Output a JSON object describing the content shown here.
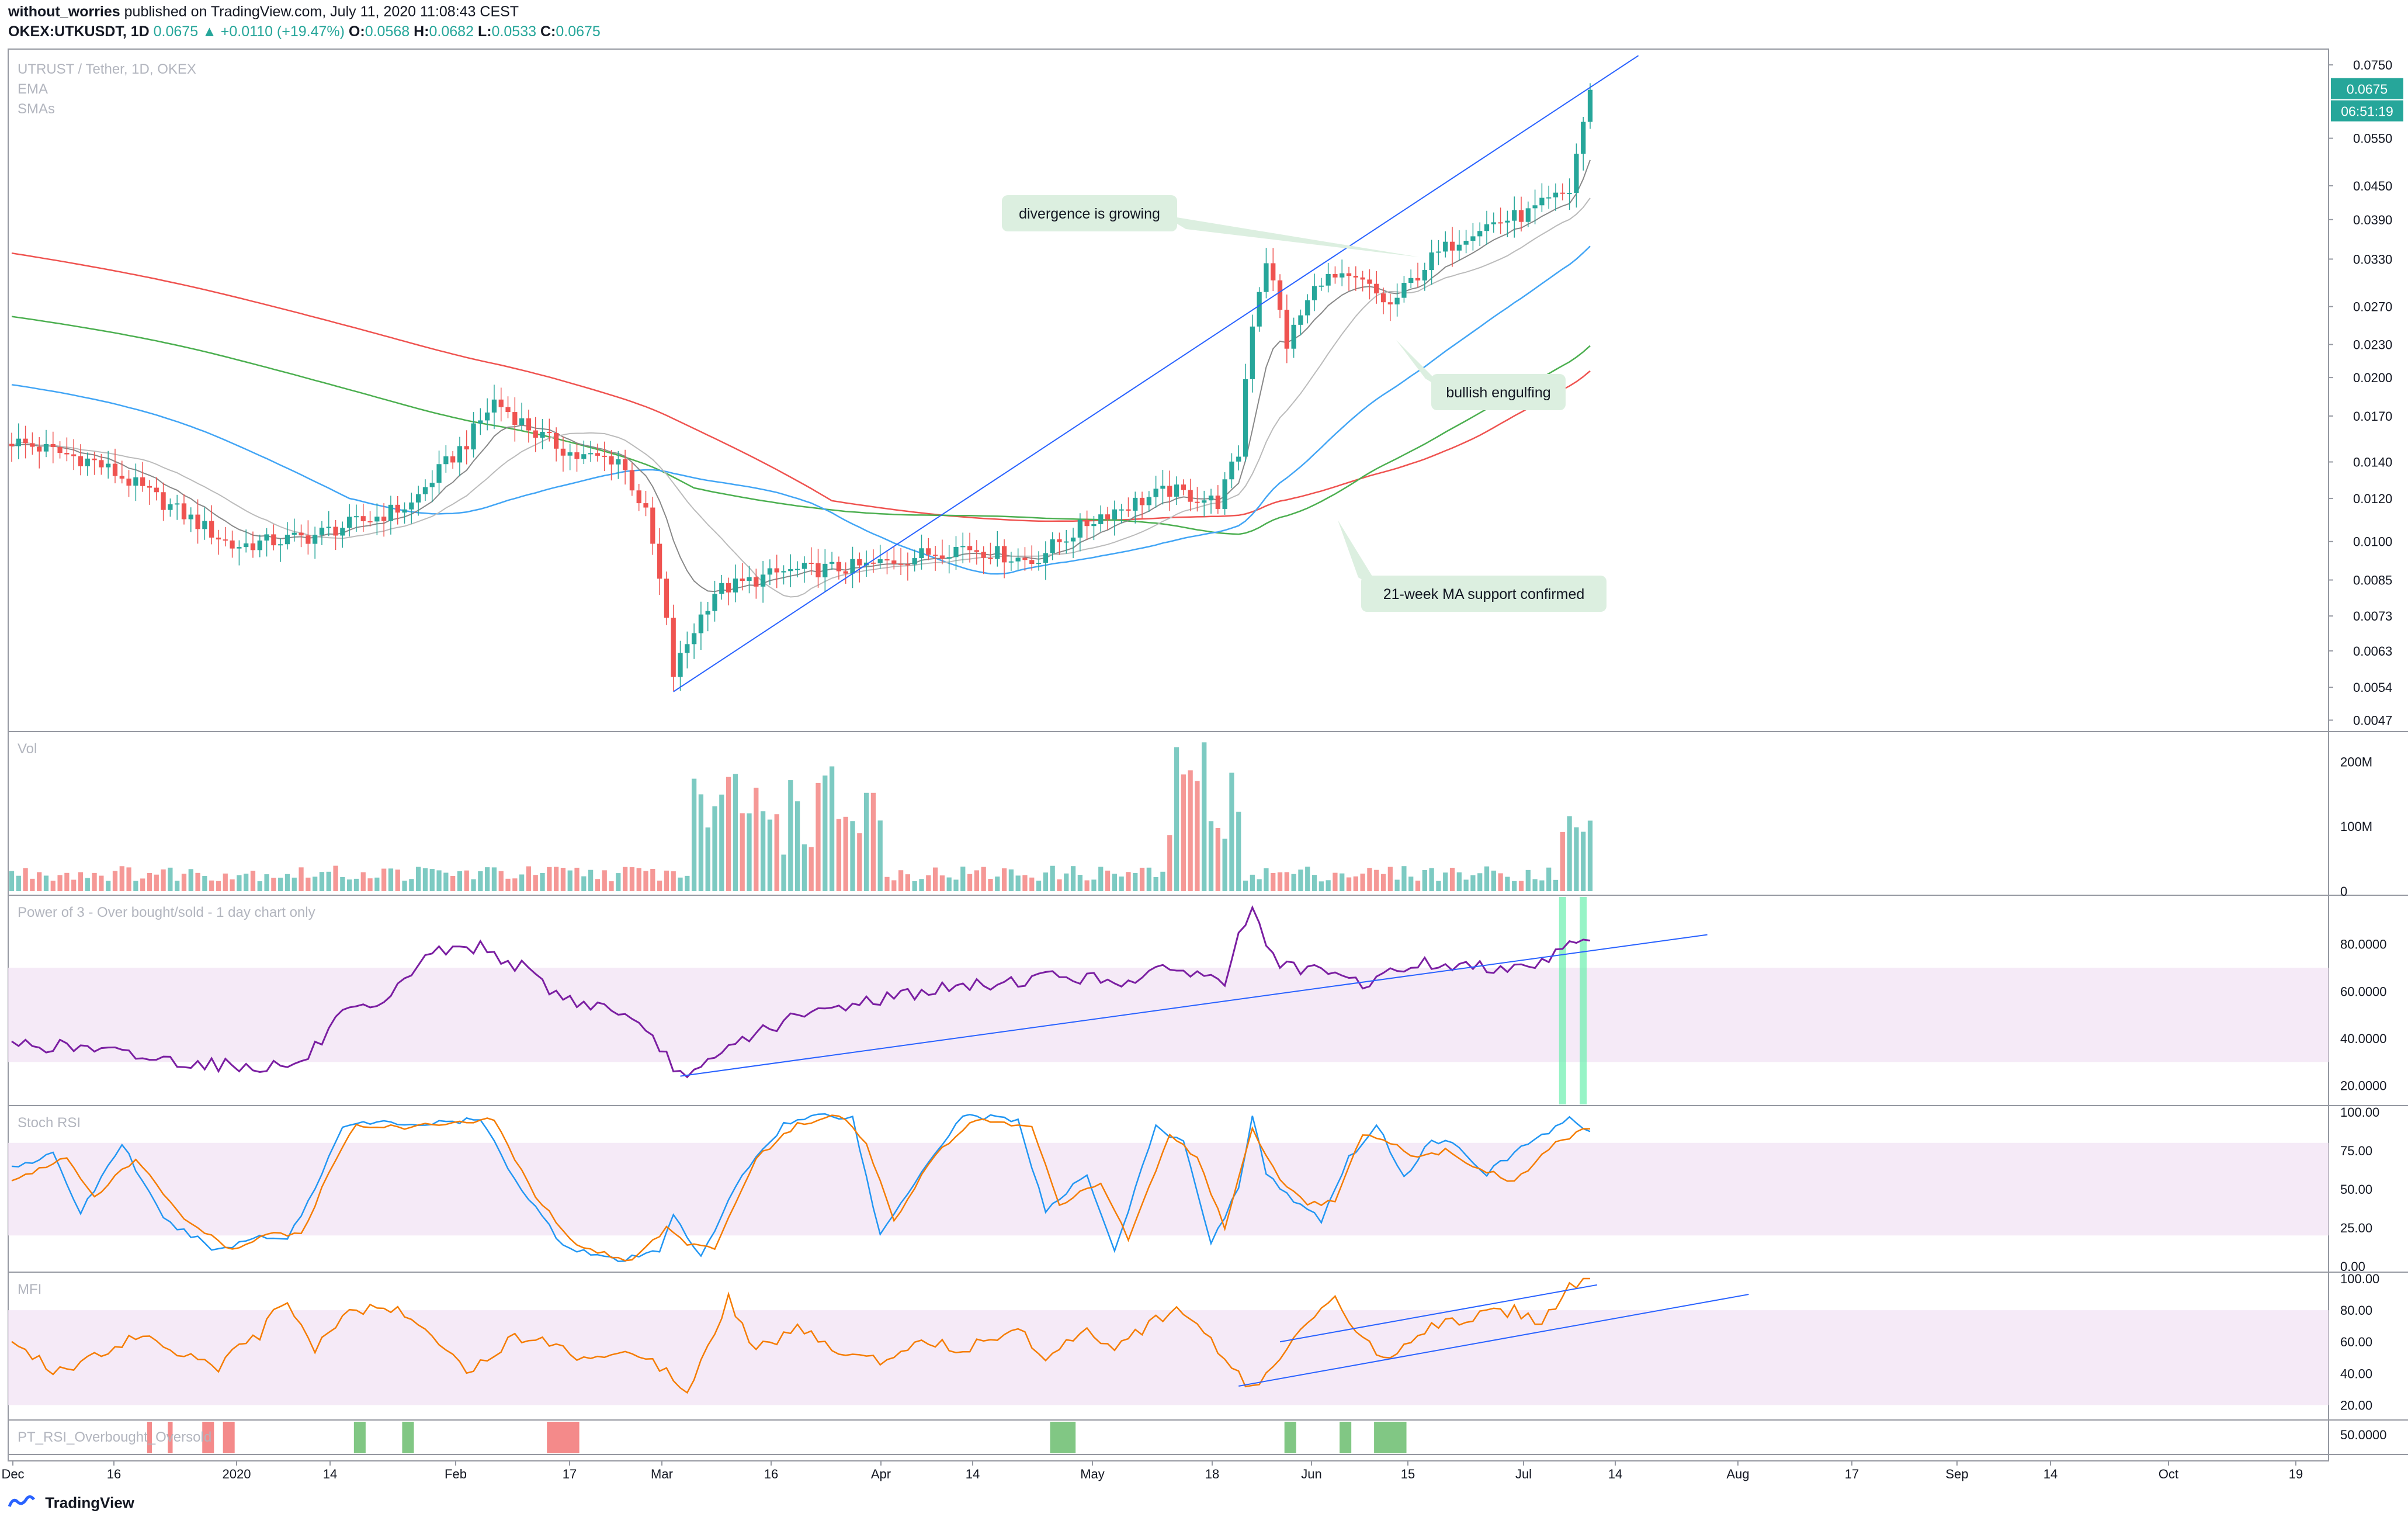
{
  "header": {
    "author": "without_worries",
    "published": "published on TradingView.com, July 11, 2020 11:08:43 CEST",
    "symbol": "OKEX:UTKUSDT, 1D",
    "last": "0.0675",
    "change": "+0.0110 (+19.47%)",
    "o_label": "O:",
    "o": "0.0568",
    "h_label": "H:",
    "h": "0.0682",
    "l_label": "L:",
    "l": "0.0533",
    "c_label": "C:",
    "c": "0.0675"
  },
  "footer": {
    "brand": "TradingView"
  },
  "colors": {
    "up": "#26a69a",
    "down": "#ef5350",
    "trendline": "#2962ff",
    "ema": "#a0a0a0",
    "sma_blue": "#42a5f5",
    "sma_green": "#4caf50",
    "sma_red": "#ef5350",
    "power3": "#7b1fa2",
    "stoch_k": "#2196f3",
    "stoch_d": "#f57c00",
    "mfi": "#f57c00",
    "band": "#f3e5f5",
    "annotation_bg": "#dcefe0"
  },
  "chart_data": {
    "type": "candlestick",
    "title": "UTRUST / Tether, 1D, OKEX",
    "legend": [
      "EMA",
      "SMAs"
    ],
    "y_scale": "log",
    "x_ticks": [
      "Dec",
      "16",
      "2020",
      "14",
      "Feb",
      "17",
      "Mar",
      "16",
      "Apr",
      "14",
      "May",
      "18",
      "Jun",
      "15",
      "Jul",
      "14",
      "Aug",
      "17",
      "Sep",
      "14",
      "Oct",
      "19"
    ],
    "price_ticks": [
      "0.0750",
      "0.0550",
      "0.0450",
      "0.0390",
      "0.0330",
      "0.0270",
      "0.0230",
      "0.0200",
      "0.0170",
      "0.0140",
      "0.0120",
      "0.0100",
      "0.0085",
      "0.0073",
      "0.0063",
      "0.0054",
      "0.0047"
    ],
    "last_price": "0.0675",
    "countdown": "06:51:19",
    "anchor_close": [
      [
        0,
        0.0153
      ],
      [
        12,
        0.014
      ],
      [
        22,
        0.0118
      ],
      [
        32,
        0.0098
      ],
      [
        43,
        0.0102
      ],
      [
        52,
        0.011
      ],
      [
        58,
        0.0117
      ],
      [
        66,
        0.0152
      ],
      [
        70,
        0.0181
      ],
      [
        76,
        0.0158
      ],
      [
        82,
        0.0143
      ],
      [
        88,
        0.0142
      ],
      [
        92,
        0.0112
      ],
      [
        96,
        0.0057
      ],
      [
        102,
        0.0081
      ],
      [
        112,
        0.0088
      ],
      [
        124,
        0.009
      ],
      [
        138,
        0.0098
      ],
      [
        148,
        0.0092
      ],
      [
        158,
        0.0112
      ],
      [
        168,
        0.0124
      ],
      [
        175,
        0.0118
      ],
      [
        178,
        0.0145
      ],
      [
        180,
        0.0253
      ],
      [
        182,
        0.033
      ],
      [
        185,
        0.023
      ],
      [
        190,
        0.0305
      ],
      [
        196,
        0.0298
      ],
      [
        200,
        0.027
      ],
      [
        206,
        0.033
      ],
      [
        212,
        0.0375
      ],
      [
        220,
        0.04
      ],
      [
        226,
        0.044
      ],
      [
        228,
        0.059
      ],
      [
        229,
        0.0675
      ]
    ],
    "annotations": [
      {
        "text": "divergence is growing"
      },
      {
        "text": "bullish engulfing"
      },
      {
        "text": "21-week MA support confirmed"
      }
    ],
    "panes": {
      "volume": {
        "title": "Vol",
        "ticks": [
          "200M",
          "100M",
          "0"
        ]
      },
      "power3": {
        "title": "Power of 3 - Over bought/sold - 1 day chart only",
        "ticks": [
          "80.0000",
          "60.0000",
          "40.0000",
          "20.0000"
        ],
        "band": [
          30,
          70
        ],
        "anchors": [
          [
            0,
            38
          ],
          [
            10,
            36
          ],
          [
            22,
            31
          ],
          [
            34,
            28
          ],
          [
            42,
            29
          ],
          [
            48,
            50
          ],
          [
            54,
            53
          ],
          [
            60,
            76
          ],
          [
            68,
            79
          ],
          [
            74,
            70
          ],
          [
            80,
            57
          ],
          [
            88,
            52
          ],
          [
            94,
            36
          ],
          [
            98,
            22
          ],
          [
            106,
            40
          ],
          [
            112,
            47
          ],
          [
            122,
            55
          ],
          [
            132,
            60
          ],
          [
            142,
            63
          ],
          [
            152,
            67
          ],
          [
            160,
            64
          ],
          [
            170,
            70
          ],
          [
            176,
            63
          ],
          [
            178,
            86
          ],
          [
            180,
            93
          ],
          [
            184,
            70
          ],
          [
            190,
            68
          ],
          [
            196,
            63
          ],
          [
            204,
            72
          ],
          [
            212,
            70
          ],
          [
            222,
            72
          ],
          [
            226,
            82
          ],
          [
            229,
            83
          ]
        ],
        "trend_line": [
          [
            97,
            24
          ],
          [
            246,
            84
          ]
        ]
      },
      "stoch_rsi": {
        "title": "Stoch RSI",
        "ticks": [
          "100.00",
          "75.00",
          "50.00",
          "25.00",
          "0.00"
        ],
        "band": [
          20,
          80
        ],
        "k_anchors": [
          [
            0,
            65
          ],
          [
            6,
            72
          ],
          [
            10,
            35
          ],
          [
            16,
            80
          ],
          [
            22,
            30
          ],
          [
            30,
            10
          ],
          [
            36,
            20
          ],
          [
            40,
            18
          ],
          [
            44,
            50
          ],
          [
            48,
            92
          ],
          [
            54,
            93
          ],
          [
            60,
            92
          ],
          [
            68,
            95
          ],
          [
            74,
            50
          ],
          [
            80,
            14
          ],
          [
            88,
            3
          ],
          [
            94,
            10
          ],
          [
            96,
            35
          ],
          [
            100,
            5
          ],
          [
            106,
            60
          ],
          [
            112,
            92
          ],
          [
            118,
            99
          ],
          [
            122,
            96
          ],
          [
            126,
            20
          ],
          [
            132,
            62
          ],
          [
            138,
            98
          ],
          [
            146,
            95
          ],
          [
            150,
            35
          ],
          [
            156,
            60
          ],
          [
            160,
            10
          ],
          [
            166,
            90
          ],
          [
            170,
            80
          ],
          [
            174,
            16
          ],
          [
            178,
            50
          ],
          [
            180,
            99
          ],
          [
            182,
            60
          ],
          [
            186,
            42
          ],
          [
            190,
            30
          ],
          [
            194,
            70
          ],
          [
            198,
            92
          ],
          [
            202,
            58
          ],
          [
            206,
            82
          ],
          [
            210,
            78
          ],
          [
            214,
            60
          ],
          [
            220,
            80
          ],
          [
            226,
            95
          ],
          [
            229,
            88
          ]
        ],
        "d_anchors": [
          [
            0,
            55
          ],
          [
            8,
            70
          ],
          [
            12,
            45
          ],
          [
            18,
            70
          ],
          [
            24,
            35
          ],
          [
            32,
            10
          ],
          [
            38,
            22
          ],
          [
            42,
            20
          ],
          [
            46,
            60
          ],
          [
            50,
            92
          ],
          [
            56,
            90
          ],
          [
            62,
            92
          ],
          [
            70,
            95
          ],
          [
            76,
            45
          ],
          [
            82,
            14
          ],
          [
            90,
            3
          ],
          [
            95,
            25
          ],
          [
            98,
            15
          ],
          [
            102,
            12
          ],
          [
            108,
            70
          ],
          [
            114,
            92
          ],
          [
            120,
            98
          ],
          [
            124,
            80
          ],
          [
            128,
            30
          ],
          [
            134,
            72
          ],
          [
            140,
            96
          ],
          [
            148,
            90
          ],
          [
            152,
            40
          ],
          [
            158,
            55
          ],
          [
            162,
            18
          ],
          [
            168,
            85
          ],
          [
            172,
            70
          ],
          [
            176,
            25
          ],
          [
            180,
            88
          ],
          [
            184,
            55
          ],
          [
            188,
            40
          ],
          [
            192,
            42
          ],
          [
            196,
            85
          ],
          [
            200,
            80
          ],
          [
            204,
            70
          ],
          [
            208,
            75
          ],
          [
            212,
            65
          ],
          [
            218,
            55
          ],
          [
            224,
            80
          ],
          [
            229,
            90
          ]
        ]
      },
      "mfi": {
        "title": "MFI",
        "ticks": [
          "100.00",
          "80.00",
          "60.00",
          "40.00",
          "20.00"
        ],
        "band": [
          20,
          80
        ],
        "anchors": [
          [
            0,
            58
          ],
          [
            6,
            42
          ],
          [
            12,
            50
          ],
          [
            18,
            65
          ],
          [
            24,
            55
          ],
          [
            30,
            45
          ],
          [
            36,
            65
          ],
          [
            40,
            88
          ],
          [
            44,
            55
          ],
          [
            48,
            78
          ],
          [
            54,
            82
          ],
          [
            60,
            72
          ],
          [
            66,
            40
          ],
          [
            72,
            60
          ],
          [
            76,
            65
          ],
          [
            82,
            50
          ],
          [
            88,
            55
          ],
          [
            94,
            45
          ],
          [
            98,
            30
          ],
          [
            104,
            88
          ],
          [
            108,
            55
          ],
          [
            114,
            68
          ],
          [
            120,
            55
          ],
          [
            126,
            48
          ],
          [
            132,
            62
          ],
          [
            138,
            55
          ],
          [
            146,
            68
          ],
          [
            150,
            50
          ],
          [
            156,
            70
          ],
          [
            160,
            55
          ],
          [
            166,
            75
          ],
          [
            170,
            80
          ],
          [
            176,
            48
          ],
          [
            180,
            30
          ],
          [
            184,
            50
          ],
          [
            188,
            70
          ],
          [
            192,
            86
          ],
          [
            196,
            60
          ],
          [
            200,
            50
          ],
          [
            206,
            72
          ],
          [
            212,
            75
          ],
          [
            218,
            80
          ],
          [
            222,
            72
          ],
          [
            226,
            96
          ],
          [
            229,
            98
          ]
        ],
        "trend_lines": [
          [
            [
              178,
              32
            ],
            [
              252,
              90
            ]
          ],
          [
            [
              184,
              60
            ],
            [
              230,
              96
            ]
          ]
        ]
      },
      "pt_rsi": {
        "title": "PT_RSI_Overbought_Oversold",
        "ticks": [
          "50.0000"
        ],
        "down_bars": [
          [
            20,
            20
          ],
          [
            23,
            23
          ],
          [
            28,
            29
          ],
          [
            31,
            32
          ],
          [
            78,
            82
          ]
        ],
        "up_bars": [
          [
            50,
            51
          ],
          [
            57,
            58
          ],
          [
            151,
            154
          ],
          [
            185,
            186
          ],
          [
            193,
            194
          ],
          [
            198,
            202
          ]
        ]
      },
      "power3_highlight_bars": [
        [
          225,
          225
        ],
        [
          228,
          228
        ]
      ]
    }
  }
}
